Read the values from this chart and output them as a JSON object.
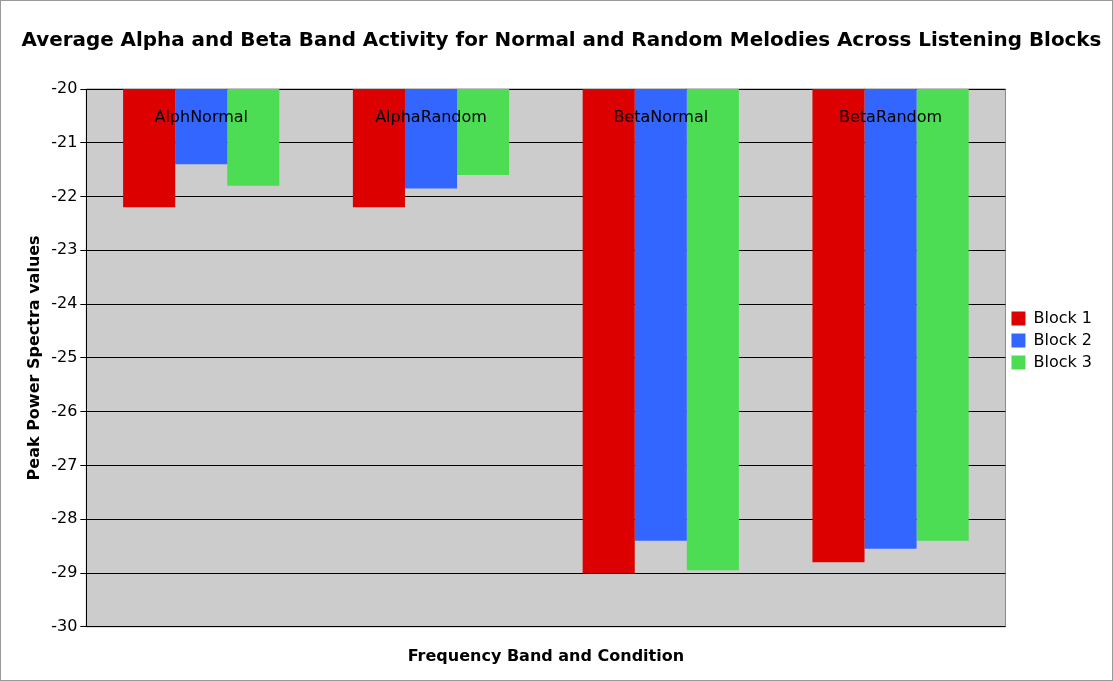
{
  "chart_data": {
    "type": "bar",
    "title": "Average Alpha and Beta Band Activity for Normal and Random Melodies Across Listening Blocks",
    "xlabel": "Frequency Band and Condition",
    "ylabel": "Peak Power Spectra values",
    "categories": [
      "AlphNormal",
      "AlphaRandom",
      "BetaNormal",
      "BetaRandom"
    ],
    "series": [
      {
        "name": "Block 1",
        "color": "#dd0000",
        "values": [
          -22.2,
          -22.2,
          -29.0,
          -28.8
        ]
      },
      {
        "name": "Block 2",
        "color": "#3366ff",
        "values": [
          -21.4,
          -21.85,
          -28.4,
          -28.55
        ]
      },
      {
        "name": "Block 3",
        "color": "#4ddd55",
        "values": [
          -21.8,
          -21.6,
          -28.95,
          -28.4
        ]
      }
    ],
    "ylim": [
      -30,
      -20
    ],
    "yticks": [
      -30,
      -29,
      -28,
      -27,
      -26,
      -25,
      -24,
      -23,
      -22,
      -21,
      -20
    ],
    "grid": "y",
    "legend": "right"
  }
}
